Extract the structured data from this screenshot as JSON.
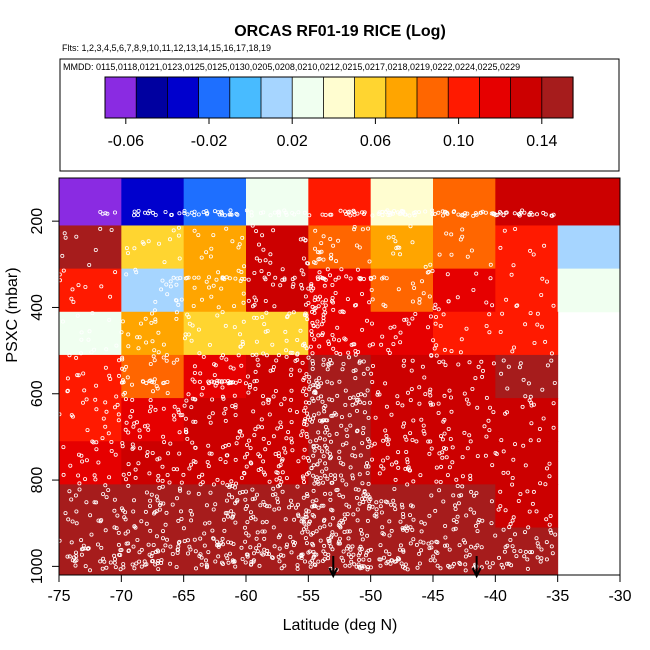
{
  "chart_data": {
    "type": "heatmap",
    "title": "ORCAS RF01-19 RICE (Log)",
    "flights_line": "Flts: 1,2,3,4,5,6,7,8,9,10,11,12,13,14,15,16,17,18,19",
    "dates_line": "MMDD: 0115,0118,0121,0123,0125,0125,0130,0205,0208,0210,0212,0215,0217,0218,0219,0222,0224,0225,0229",
    "xlabel": "Latitude (deg N)",
    "ylabel": "PSXC (mbar)",
    "xlim": [
      -75,
      -30
    ],
    "ylim": [
      1020,
      100
    ],
    "x_ticks": [
      -75,
      -70,
      -65,
      -60,
      -55,
      -50,
      -45,
      -40,
      -35,
      -30
    ],
    "x_tick_labels": [
      "-75",
      "-70",
      "-65",
      "-60",
      "-55",
      "-50",
      "-45",
      "-40",
      "-35",
      "-30"
    ],
    "y_ticks": [
      200,
      400,
      600,
      800,
      1000
    ],
    "y_tick_labels": [
      "200",
      "400",
      "600",
      "800",
      "1000"
    ],
    "x_bin_edges": [
      -75,
      -70,
      -65,
      -60,
      -55,
      -50,
      -45,
      -40,
      -35,
      -30
    ],
    "y_bin_edges": [
      100,
      210,
      310,
      410,
      510,
      610,
      710,
      810,
      910,
      1020
    ],
    "values": [
      [
        -0.06,
        -0.03,
        -0.025,
        0.02,
        0.1,
        0.045,
        0.085,
        0.13,
        0.13
      ],
      [
        0.15,
        0.06,
        0.075,
        0.13,
        0.085,
        0.075,
        0.085,
        0.1,
        0.015
      ],
      [
        0.11,
        0.01,
        0.07,
        0.125,
        0.12,
        0.085,
        0.115,
        0.095,
        0.025
      ],
      [
        0.03,
        0.065,
        0.055,
        0.055,
        0.12,
        0.115,
        0.11,
        0.11,
        null
      ],
      [
        0.11,
        0.08,
        0.12,
        0.125,
        0.14,
        0.125,
        0.135,
        0.14,
        null
      ],
      [
        0.105,
        0.115,
        0.125,
        0.13,
        0.145,
        0.13,
        0.13,
        0.13,
        null
      ],
      [
        0.115,
        0.125,
        0.13,
        0.125,
        0.145,
        0.135,
        0.13,
        0.13,
        null
      ],
      [
        0.14,
        0.145,
        0.145,
        0.15,
        0.145,
        0.15,
        0.14,
        0.135,
        null
      ],
      [
        0.145,
        0.14,
        0.14,
        0.14,
        0.145,
        0.15,
        0.14,
        0.14,
        null
      ]
    ],
    "colorbar": {
      "range": [
        -0.07,
        0.155
      ],
      "tick_values": [
        -0.06,
        -0.02,
        0.02,
        0.06,
        0.1,
        0.14
      ],
      "tick_labels": [
        "-0.06",
        "-0.02",
        "0.02",
        "0.06",
        "0.10",
        "0.14"
      ],
      "colors": [
        "#8a2be2",
        "#0000a0",
        "#0000cd",
        "#1e6fff",
        "#48bbff",
        "#a6d5ff",
        "#f0fff0",
        "#fffdd0",
        "#ffd530",
        "#ffa500",
        "#ff6600",
        "#ff1a00",
        "#e60000",
        "#cc0000",
        "#a61c1c"
      ]
    },
    "arrow_latitudes": [
      -53,
      -41.5
    ],
    "samples": "white open circles show individual flight measurements along the flight tracks"
  }
}
